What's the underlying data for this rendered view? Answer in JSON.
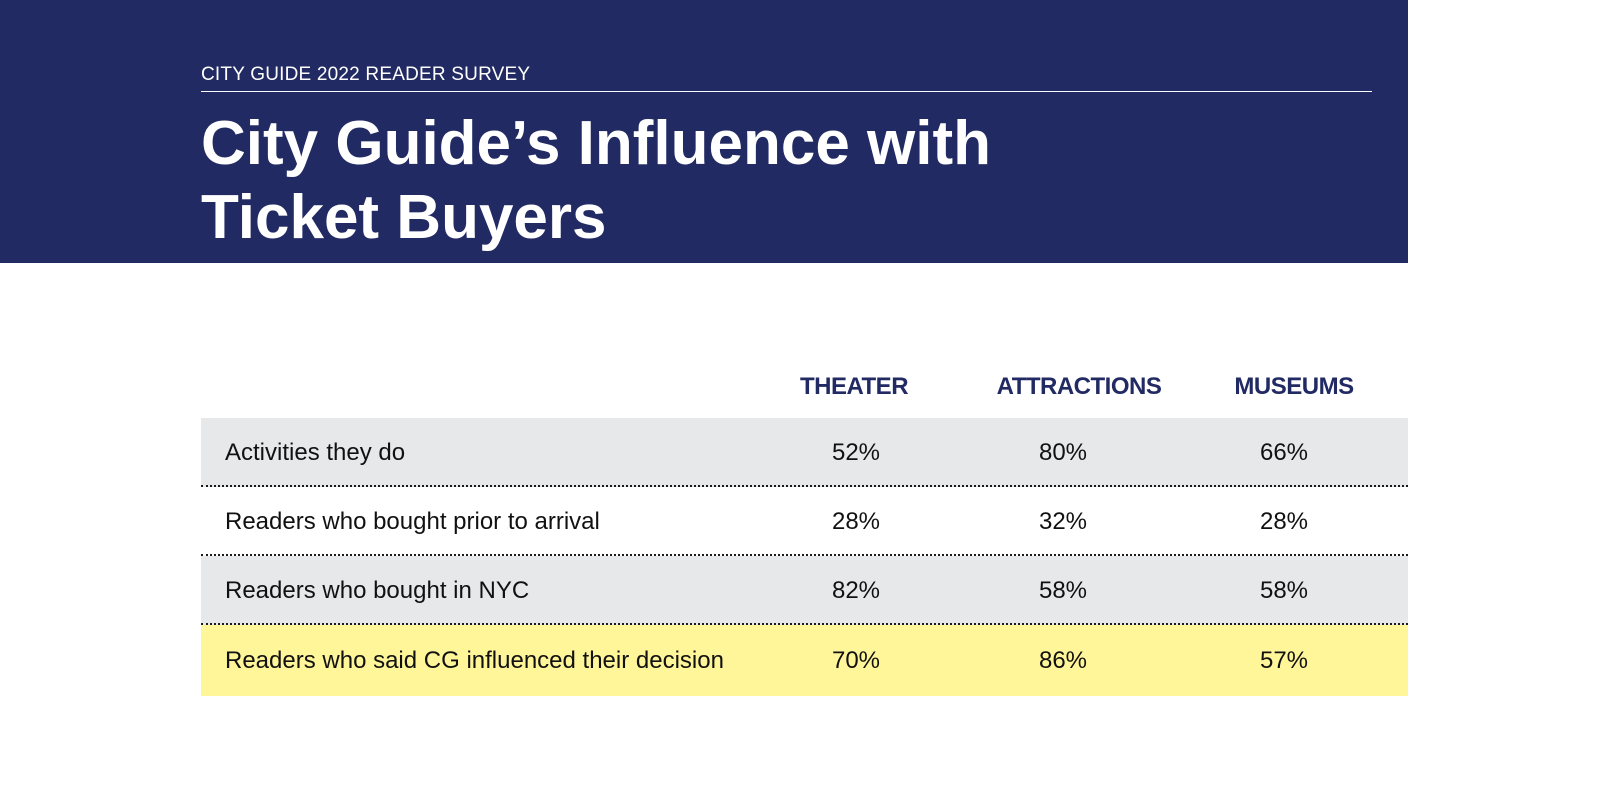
{
  "header": {
    "kicker": "CITY GUIDE 2022 READER SURVEY",
    "title_line1": "City Guide’s Influence with",
    "title_line2": "Ticket Buyers"
  },
  "colors": {
    "banner": "#222a63",
    "row_gray": "#e7e8ea",
    "row_highlight": "#fff599",
    "heading_text": "#222a63"
  },
  "chart_data": {
    "type": "table",
    "title": "City Guide’s Influence with Ticket Buyers",
    "columns": [
      "THEATER",
      "ATTRACTIONS",
      "MUSEUMS"
    ],
    "rows": [
      {
        "label": "Activities they do",
        "values": [
          "52%",
          "80%",
          "66%"
        ],
        "style": "gray"
      },
      {
        "label": "Readers who bought prior to arrival",
        "values": [
          "28%",
          "32%",
          "28%"
        ],
        "style": "white"
      },
      {
        "label": "Readers who bought in NYC",
        "values": [
          "82%",
          "58%",
          "58%"
        ],
        "style": "gray"
      },
      {
        "label": "Readers who said CG influenced their decision",
        "values": [
          "70%",
          "86%",
          "57%"
        ],
        "style": "yellow"
      }
    ]
  }
}
